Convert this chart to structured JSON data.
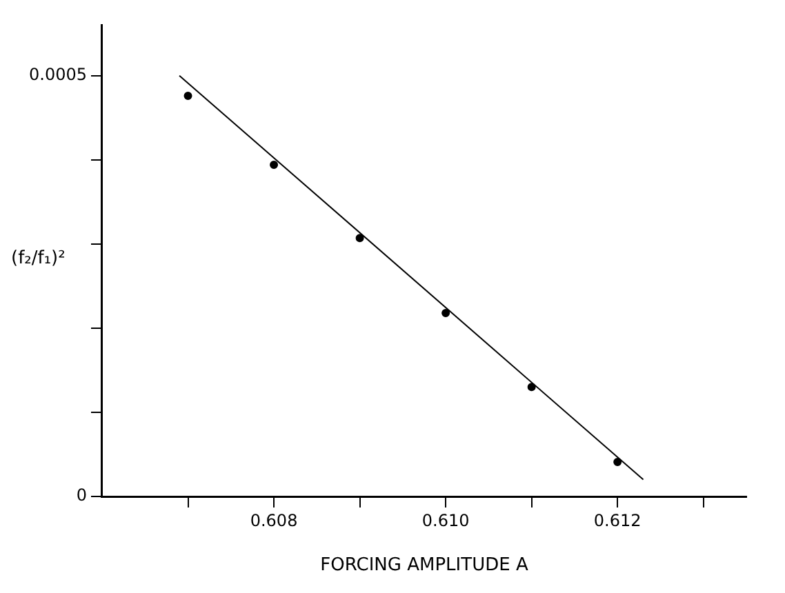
{
  "chart_data": {
    "type": "scatter",
    "xlabel": "FORCING AMPLITUDE A",
    "ylabel": "(f₂/f₁)²",
    "xlim": [
      0.606,
      0.6135
    ],
    "ylim": [
      0,
      0.00056
    ],
    "xticks": [
      {
        "value": 0.607,
        "label": null
      },
      0.608,
      {
        "value": 0.609,
        "label": null
      },
      {
        "value": 0.61,
        "label": "0.610"
      },
      {
        "value": 0.611,
        "label": null
      },
      0.612,
      {
        "value": 0.613,
        "label": null
      }
    ],
    "yticks": [
      0,
      {
        "value": 0.0001,
        "label": null
      },
      {
        "value": 0.0002,
        "label": null
      },
      {
        "value": 0.0003,
        "label": null
      },
      {
        "value": 0.0004,
        "label": null
      },
      0.0005
    ],
    "series": [
      {
        "type": "scatter",
        "color": "#000000",
        "marker": "circle",
        "x": [
          0.607,
          0.608,
          0.609,
          0.61,
          0.611,
          0.612
        ],
        "values": [
          0.000476,
          0.000394,
          0.000307,
          0.000218,
          0.00013,
          4.1e-05
        ]
      },
      {
        "type": "line",
        "color": "#000000",
        "marker": "none",
        "line_style": "solid",
        "x": [
          0.6069,
          0.6123
        ],
        "values": [
          0.0005,
          2e-05
        ]
      }
    ]
  }
}
